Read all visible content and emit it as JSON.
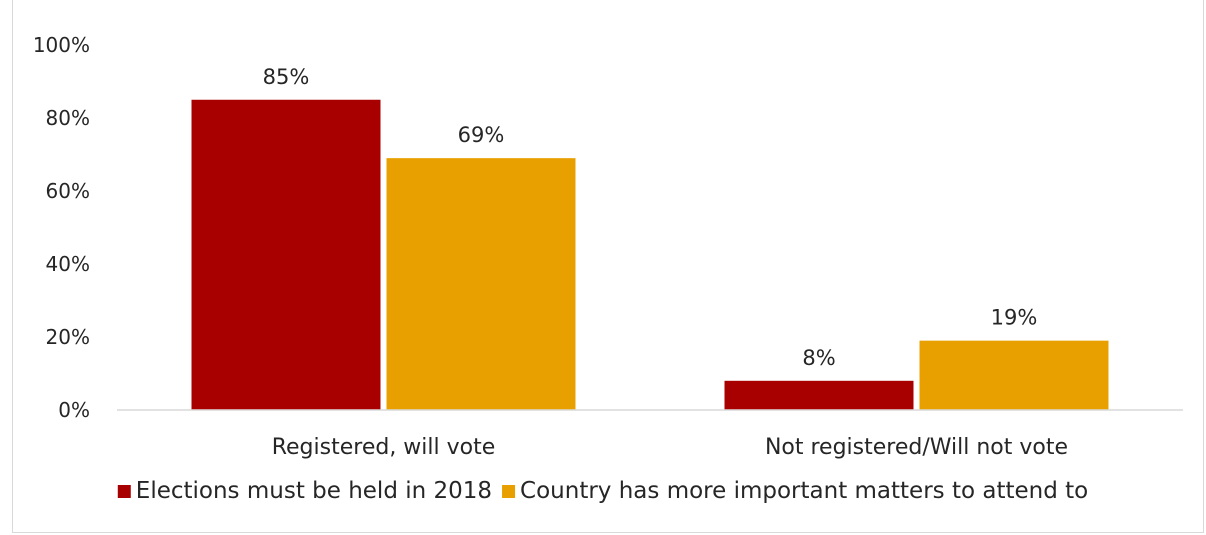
{
  "chart_data": {
    "type": "bar",
    "categories": [
      "Registered, will vote",
      "Not registered/Will not vote"
    ],
    "series": [
      {
        "name": "Elections must be held in 2018",
        "values": [
          85,
          8
        ],
        "color": "#a80000"
      },
      {
        "name": "Country has more important matters to attend to",
        "values": [
          69,
          19
        ],
        "color": "#e8a000"
      }
    ],
    "yticks": [
      "0%",
      "20%",
      "40%",
      "60%",
      "80%",
      "100%"
    ],
    "ylim": [
      0,
      100
    ],
    "value_suffix": "%",
    "grid": false,
    "legend_position": "bottom",
    "title": "",
    "xlabel": "",
    "ylabel": ""
  }
}
